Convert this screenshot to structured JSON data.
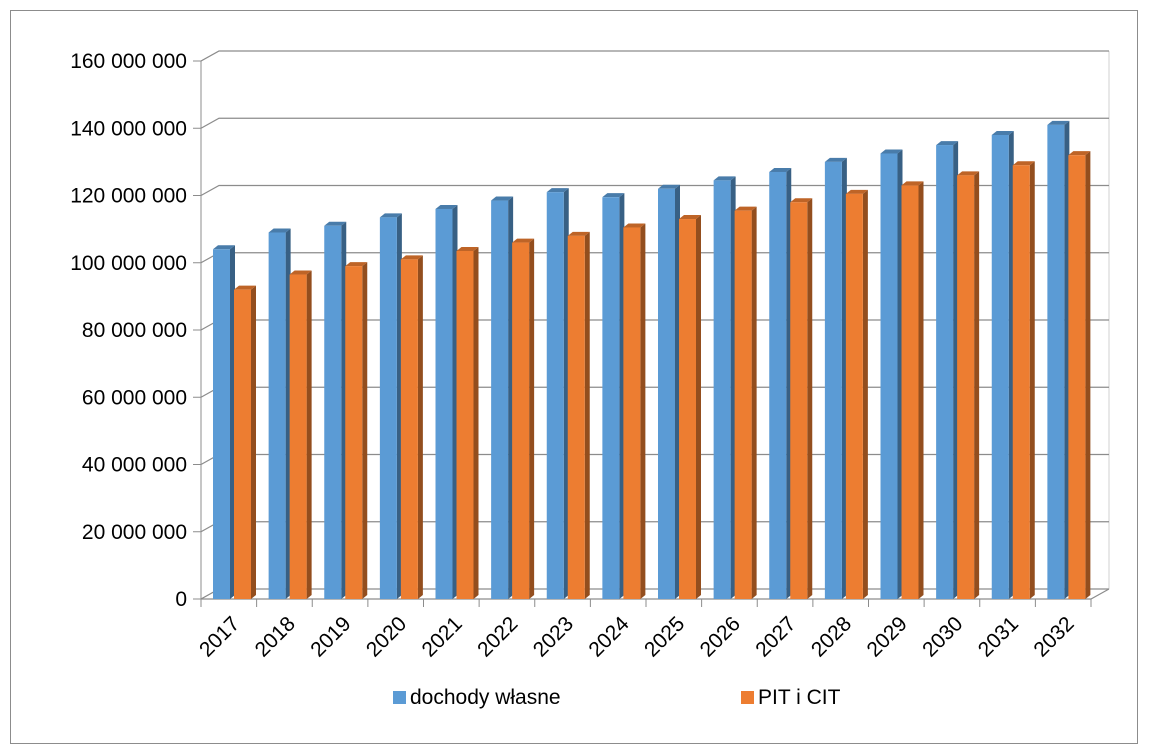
{
  "chart_data": {
    "type": "bar",
    "style": "3d-clustered-column",
    "title": "",
    "xlabel": "",
    "ylabel": "",
    "categories": [
      "2017",
      "2018",
      "2019",
      "2020",
      "2021",
      "2022",
      "2023",
      "2024",
      "2025",
      "2026",
      "2027",
      "2028",
      "2029",
      "2030",
      "2031",
      "2032"
    ],
    "series": [
      {
        "name": "dochody własne",
        "color": "#5b9bd5",
        "values": [
          104000000,
          109000000,
          111000000,
          113500000,
          116000000,
          118500000,
          121000000,
          119500000,
          122000000,
          124500000,
          127000000,
          130000000,
          132500000,
          135000000,
          138000000,
          141000000
        ]
      },
      {
        "name": "PIT i CIT",
        "color": "#ed7d31",
        "values": [
          92000000,
          96500000,
          99000000,
          101000000,
          103500000,
          106000000,
          108000000,
          110500000,
          113000000,
          115500000,
          118000000,
          120500000,
          123000000,
          126000000,
          129000000,
          132000000
        ]
      }
    ],
    "yaxis": {
      "min": 0,
      "max": 160000000,
      "ticks": [
        "0",
        "20 000 000",
        "40 000 000",
        "60 000 000",
        "80 000 000",
        "100 000 000",
        "120 000 000",
        "140 000 000",
        "160 000 000"
      ]
    },
    "grid": true,
    "legend_position": "bottom"
  }
}
